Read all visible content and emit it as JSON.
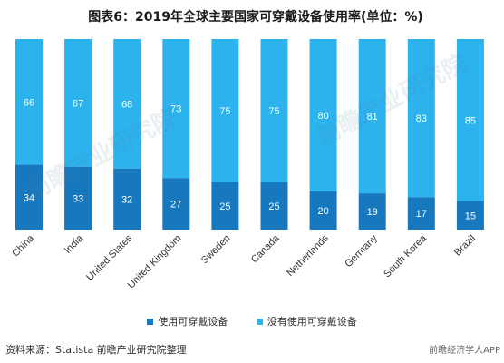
{
  "title": "图表6：2019年全球主要国家可穿戴设备使用率(单位：%)",
  "source": "资料来源：Statista 前瞻产业研究院整理",
  "brand": "前瞻经济学人APP",
  "watermark": "前瞻产业研究院",
  "colors": {
    "used": "#1878bd",
    "not_used": "#2cb2ec",
    "bar_label": "#ffffff"
  },
  "chart_data": {
    "type": "bar",
    "stacked": true,
    "categories": [
      "China",
      "India",
      "United States",
      "United Kingdom",
      "Sweden",
      "Canada",
      "Netherlands",
      "Germany",
      "South Korea",
      "Brazil"
    ],
    "series": [
      {
        "name": "使用可穿戴设备",
        "values": [
          34,
          33,
          32,
          27,
          25,
          25,
          20,
          19,
          17,
          15
        ]
      },
      {
        "name": "没有使用可穿戴设备",
        "values": [
          66,
          67,
          68,
          73,
          75,
          75,
          80,
          81,
          83,
          85
        ]
      }
    ],
    "ylim": [
      0,
      100
    ],
    "grid": false,
    "legend_position": "bottom"
  }
}
